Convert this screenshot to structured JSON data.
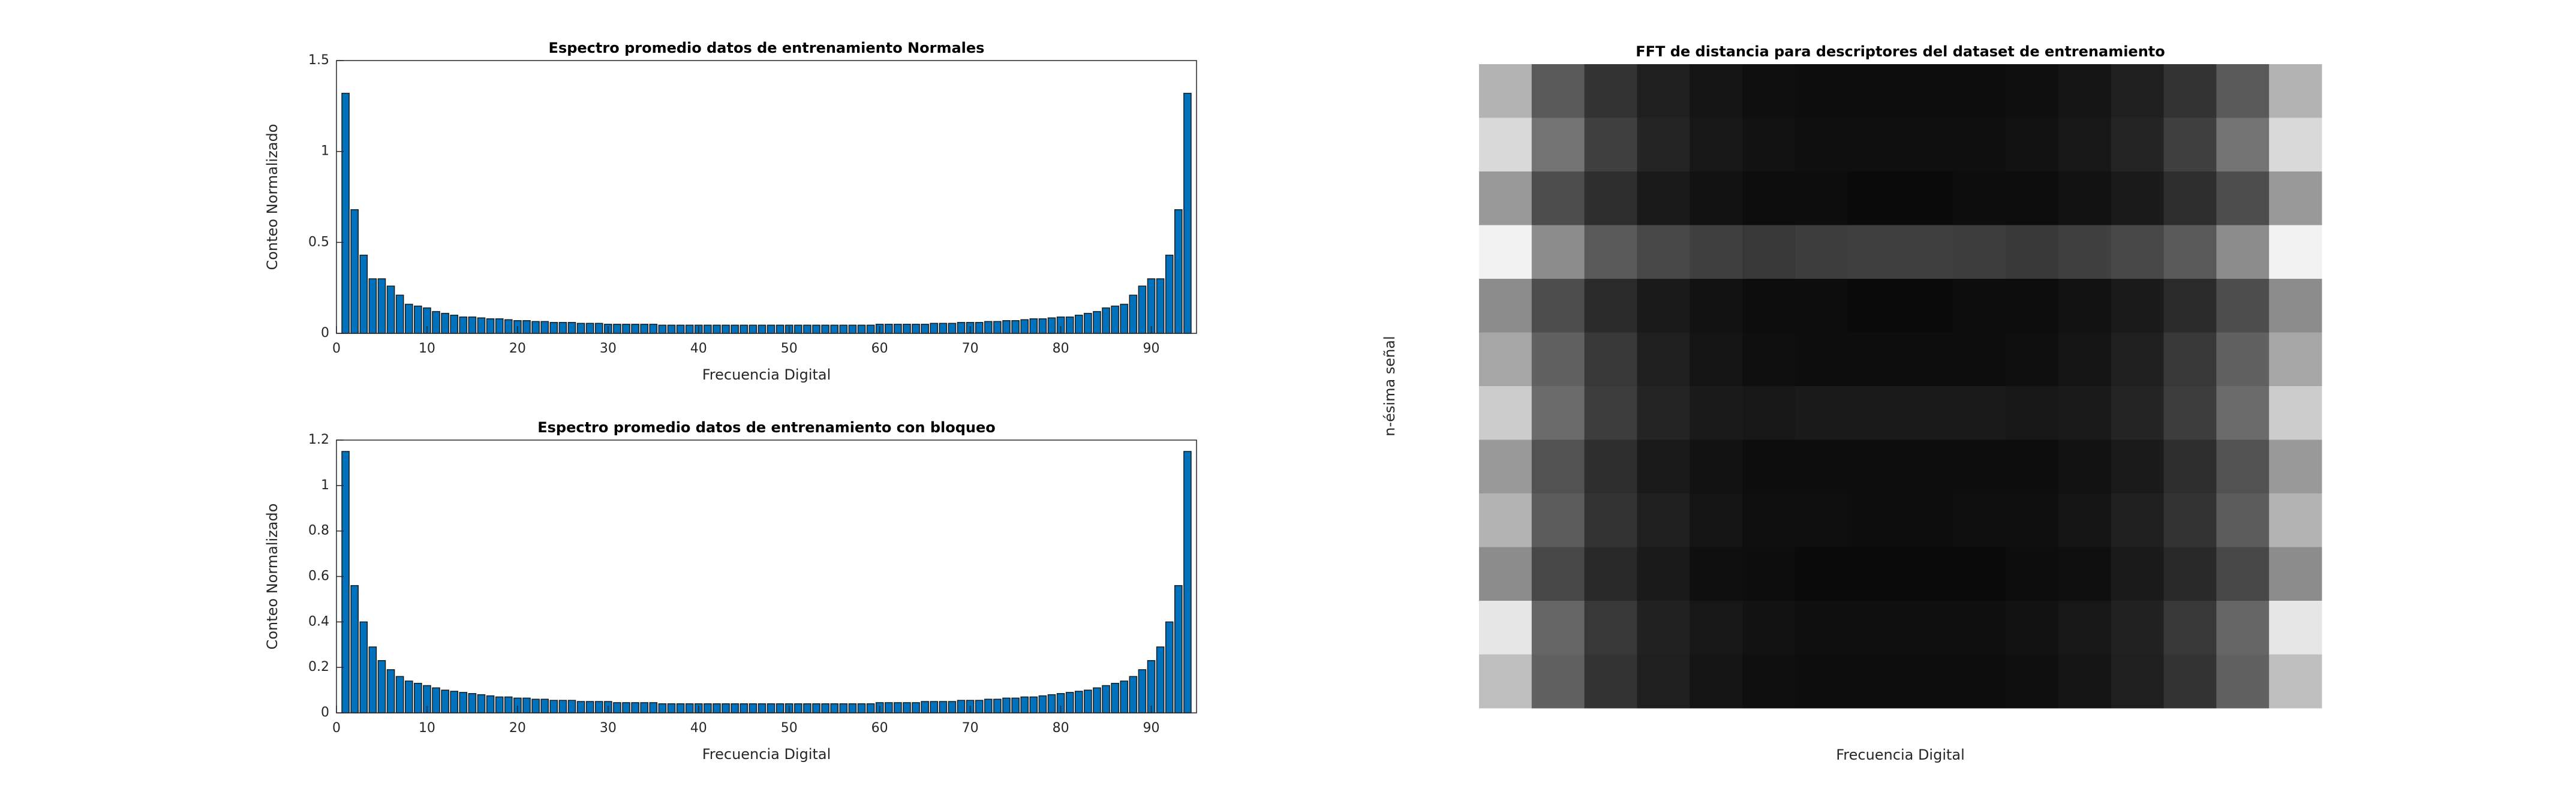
{
  "chart_data": [
    {
      "type": "bar",
      "title": "Espectro promedio datos de entrenamiento Normales",
      "xlabel": "Frecuencia Digital",
      "ylabel": "Conteo Normalizado",
      "color": "#0072bd",
      "x": [
        1,
        2,
        3,
        4,
        5,
        6,
        7,
        8,
        9,
        10,
        11,
        12,
        13,
        14,
        15,
        16,
        17,
        18,
        19,
        20,
        21,
        22,
        23,
        24,
        25,
        26,
        27,
        28,
        29,
        30,
        31,
        32,
        33,
        34,
        35,
        36,
        37,
        38,
        39,
        40,
        41,
        42,
        43,
        44,
        45,
        46,
        47,
        48,
        49,
        50,
        51,
        52,
        53,
        54,
        55,
        56,
        57,
        58,
        59,
        60,
        61,
        62,
        63,
        64,
        65,
        66,
        67,
        68,
        69,
        70,
        71,
        72,
        73,
        74,
        75,
        76,
        77,
        78,
        79,
        80,
        81,
        82,
        83,
        84,
        85,
        86,
        87,
        88,
        89,
        90,
        91,
        92,
        93,
        94
      ],
      "values": [
        1.32,
        0.68,
        0.43,
        0.3,
        0.3,
        0.26,
        0.21,
        0.16,
        0.15,
        0.14,
        0.12,
        0.11,
        0.1,
        0.09,
        0.09,
        0.085,
        0.08,
        0.08,
        0.075,
        0.07,
        0.07,
        0.065,
        0.065,
        0.06,
        0.06,
        0.06,
        0.055,
        0.055,
        0.055,
        0.05,
        0.05,
        0.05,
        0.05,
        0.05,
        0.05,
        0.045,
        0.045,
        0.045,
        0.045,
        0.045,
        0.045,
        0.045,
        0.045,
        0.045,
        0.045,
        0.045,
        0.045,
        0.045,
        0.045,
        0.045,
        0.045,
        0.045,
        0.045,
        0.045,
        0.045,
        0.045,
        0.045,
        0.045,
        0.045,
        0.05,
        0.05,
        0.05,
        0.05,
        0.05,
        0.05,
        0.055,
        0.055,
        0.055,
        0.06,
        0.06,
        0.06,
        0.065,
        0.065,
        0.07,
        0.07,
        0.075,
        0.08,
        0.08,
        0.085,
        0.09,
        0.09,
        0.1,
        0.11,
        0.12,
        0.14,
        0.15,
        0.16,
        0.21,
        0.26,
        0.3,
        0.3,
        0.43,
        0.68,
        1.32
      ],
      "xlim": [
        0,
        95
      ],
      "xticks": [
        0,
        10,
        20,
        30,
        40,
        50,
        60,
        70,
        80,
        90
      ],
      "ylim": [
        0,
        1.5
      ],
      "yticks": [
        0,
        0.5,
        1,
        1.5
      ]
    },
    {
      "type": "bar",
      "title": "Espectro promedio datos de entrenamiento con bloqueo",
      "xlabel": "Frecuencia Digital",
      "ylabel": "Conteo Normalizado",
      "color": "#0072bd",
      "x": [
        1,
        2,
        3,
        4,
        5,
        6,
        7,
        8,
        9,
        10,
        11,
        12,
        13,
        14,
        15,
        16,
        17,
        18,
        19,
        20,
        21,
        22,
        23,
        24,
        25,
        26,
        27,
        28,
        29,
        30,
        31,
        32,
        33,
        34,
        35,
        36,
        37,
        38,
        39,
        40,
        41,
        42,
        43,
        44,
        45,
        46,
        47,
        48,
        49,
        50,
        51,
        52,
        53,
        54,
        55,
        56,
        57,
        58,
        59,
        60,
        61,
        62,
        63,
        64,
        65,
        66,
        67,
        68,
        69,
        70,
        71,
        72,
        73,
        74,
        75,
        76,
        77,
        78,
        79,
        80,
        81,
        82,
        83,
        84,
        85,
        86,
        87,
        88,
        89,
        90,
        91,
        92,
        93,
        94
      ],
      "values": [
        1.15,
        0.56,
        0.4,
        0.29,
        0.23,
        0.19,
        0.16,
        0.14,
        0.13,
        0.12,
        0.11,
        0.1,
        0.095,
        0.09,
        0.085,
        0.08,
        0.075,
        0.07,
        0.07,
        0.065,
        0.065,
        0.06,
        0.06,
        0.055,
        0.055,
        0.055,
        0.05,
        0.05,
        0.05,
        0.05,
        0.045,
        0.045,
        0.045,
        0.045,
        0.045,
        0.04,
        0.04,
        0.04,
        0.04,
        0.04,
        0.04,
        0.04,
        0.04,
        0.04,
        0.04,
        0.04,
        0.04,
        0.04,
        0.04,
        0.04,
        0.04,
        0.04,
        0.04,
        0.04,
        0.04,
        0.04,
        0.04,
        0.04,
        0.04,
        0.045,
        0.045,
        0.045,
        0.045,
        0.045,
        0.05,
        0.05,
        0.05,
        0.05,
        0.055,
        0.055,
        0.055,
        0.06,
        0.06,
        0.065,
        0.065,
        0.07,
        0.07,
        0.075,
        0.08,
        0.085,
        0.09,
        0.095,
        0.1,
        0.11,
        0.12,
        0.13,
        0.14,
        0.16,
        0.19,
        0.23,
        0.29,
        0.4,
        0.56,
        1.15
      ],
      "xlim": [
        0,
        95
      ],
      "xticks": [
        0,
        10,
        20,
        30,
        40,
        50,
        60,
        70,
        80,
        90
      ],
      "ylim": [
        0,
        1.2
      ],
      "yticks": [
        0,
        0.2,
        0.4,
        0.6,
        0.8,
        1,
        1.2
      ]
    },
    {
      "type": "heatmap",
      "title": "FFT de distancia para descriptores del dataset de entrenamiento",
      "xlabel": "Frecuencia Digital",
      "ylabel": "n-ésima señal",
      "colormap": "gray",
      "clim": [
        0,
        1
      ],
      "values": [
        [
          0.7,
          0.35,
          0.2,
          0.12,
          0.08,
          0.06,
          0.05,
          0.05,
          0.05,
          0.05,
          0.06,
          0.08,
          0.12,
          0.2,
          0.35,
          0.7
        ],
        [
          0.85,
          0.45,
          0.25,
          0.14,
          0.09,
          0.07,
          0.06,
          0.06,
          0.06,
          0.06,
          0.07,
          0.09,
          0.14,
          0.25,
          0.45,
          0.85
        ],
        [
          0.6,
          0.3,
          0.18,
          0.1,
          0.07,
          0.05,
          0.05,
          0.04,
          0.04,
          0.05,
          0.05,
          0.07,
          0.1,
          0.18,
          0.3,
          0.6
        ],
        [
          0.95,
          0.55,
          0.35,
          0.28,
          0.25,
          0.22,
          0.24,
          0.25,
          0.25,
          0.24,
          0.22,
          0.25,
          0.28,
          0.35,
          0.55,
          0.95
        ],
        [
          0.55,
          0.3,
          0.17,
          0.1,
          0.07,
          0.05,
          0.05,
          0.04,
          0.04,
          0.05,
          0.05,
          0.07,
          0.1,
          0.17,
          0.3,
          0.55
        ],
        [
          0.65,
          0.38,
          0.22,
          0.12,
          0.08,
          0.06,
          0.05,
          0.05,
          0.05,
          0.05,
          0.06,
          0.08,
          0.12,
          0.22,
          0.38,
          0.65
        ],
        [
          0.8,
          0.42,
          0.24,
          0.14,
          0.1,
          0.09,
          0.1,
          0.1,
          0.1,
          0.1,
          0.09,
          0.1,
          0.14,
          0.24,
          0.42,
          0.8
        ],
        [
          0.6,
          0.32,
          0.18,
          0.1,
          0.07,
          0.05,
          0.05,
          0.05,
          0.05,
          0.05,
          0.05,
          0.07,
          0.1,
          0.18,
          0.32,
          0.6
        ],
        [
          0.7,
          0.36,
          0.2,
          0.12,
          0.08,
          0.06,
          0.06,
          0.05,
          0.05,
          0.06,
          0.06,
          0.08,
          0.12,
          0.2,
          0.36,
          0.7
        ],
        [
          0.55,
          0.28,
          0.16,
          0.1,
          0.06,
          0.05,
          0.04,
          0.04,
          0.04,
          0.04,
          0.05,
          0.06,
          0.1,
          0.16,
          0.28,
          0.55
        ],
        [
          0.9,
          0.4,
          0.22,
          0.13,
          0.09,
          0.07,
          0.06,
          0.06,
          0.06,
          0.06,
          0.07,
          0.09,
          0.13,
          0.22,
          0.4,
          0.9
        ],
        [
          0.75,
          0.38,
          0.2,
          0.12,
          0.08,
          0.06,
          0.05,
          0.05,
          0.05,
          0.05,
          0.06,
          0.08,
          0.12,
          0.2,
          0.38,
          0.75
        ]
      ]
    }
  ]
}
